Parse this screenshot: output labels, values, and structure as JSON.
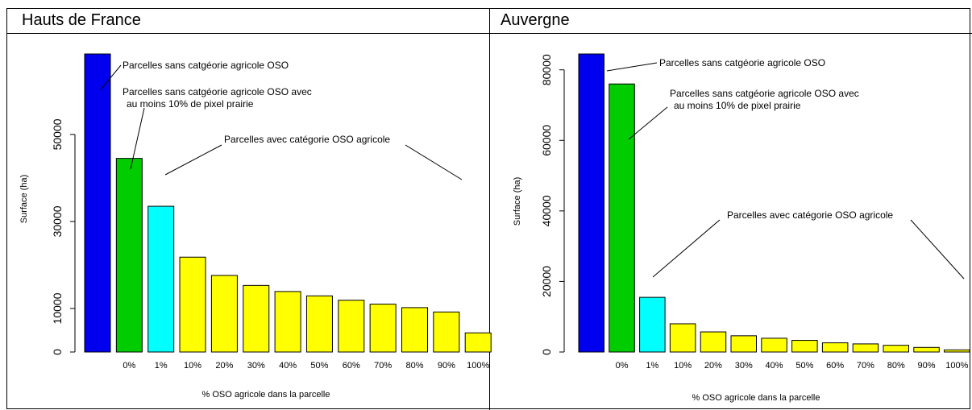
{
  "panels": [
    {
      "title": "Hauts de France",
      "chart_data": {
        "type": "bar",
        "categories": [
          "",
          "0%",
          "1%",
          "10%",
          "20%",
          "30%",
          "40%",
          "50%",
          "60%",
          "70%",
          "80%",
          "90%",
          "100%"
        ],
        "values": [
          68500,
          44500,
          33500,
          21800,
          17600,
          15300,
          13900,
          12900,
          11900,
          11000,
          10200,
          9200,
          4400
        ],
        "colors": [
          "#0000ee",
          "#00cc00",
          "#00ffff",
          "#ffff00",
          "#ffff00",
          "#ffff00",
          "#ffff00",
          "#ffff00",
          "#ffff00",
          "#ffff00",
          "#ffff00",
          "#ffff00",
          "#ffff00"
        ],
        "ylim": [
          0,
          68500
        ],
        "yticks": [
          0,
          10000,
          30000,
          50000
        ],
        "xlabel": "% OSO agricole dans la parcelle",
        "ylabel": "Surface (ha)",
        "annotations": [
          "Parcelles sans catgéorie agricole OSO",
          "Parcelles sans catgéorie agricole OSO avec",
          "au moins 10% de pixel prairie",
          "Parcelles avec catégorie OSO agricole"
        ]
      }
    },
    {
      "title": "Auvergne",
      "chart_data": {
        "type": "bar",
        "categories": [
          "",
          "0%",
          "1%",
          "10%",
          "20%",
          "30%",
          "40%",
          "50%",
          "60%",
          "70%",
          "80%",
          "90%",
          "100%"
        ],
        "values": [
          84500,
          76000,
          15500,
          8000,
          5700,
          4600,
          3900,
          3300,
          2600,
          2300,
          1900,
          1300,
          600
        ],
        "colors": [
          "#0000ee",
          "#00cc00",
          "#00ffff",
          "#ffff00",
          "#ffff00",
          "#ffff00",
          "#ffff00",
          "#ffff00",
          "#ffff00",
          "#ffff00",
          "#ffff00",
          "#ffff00",
          "#ffff00"
        ],
        "ylim": [
          0,
          84500
        ],
        "yticks": [
          0,
          20000,
          40000,
          60000,
          80000
        ],
        "xlabel": "% OSO agricole dans la parcelle",
        "ylabel": "Surface (ha)",
        "annotations": [
          "Parcelles sans catgéorie agricole OSO",
          "Parcelles sans catgéorie agricole OSO avec",
          "au moins 10% de pixel prairie",
          "Parcelles avec catégorie OSO agricole"
        ]
      }
    }
  ]
}
